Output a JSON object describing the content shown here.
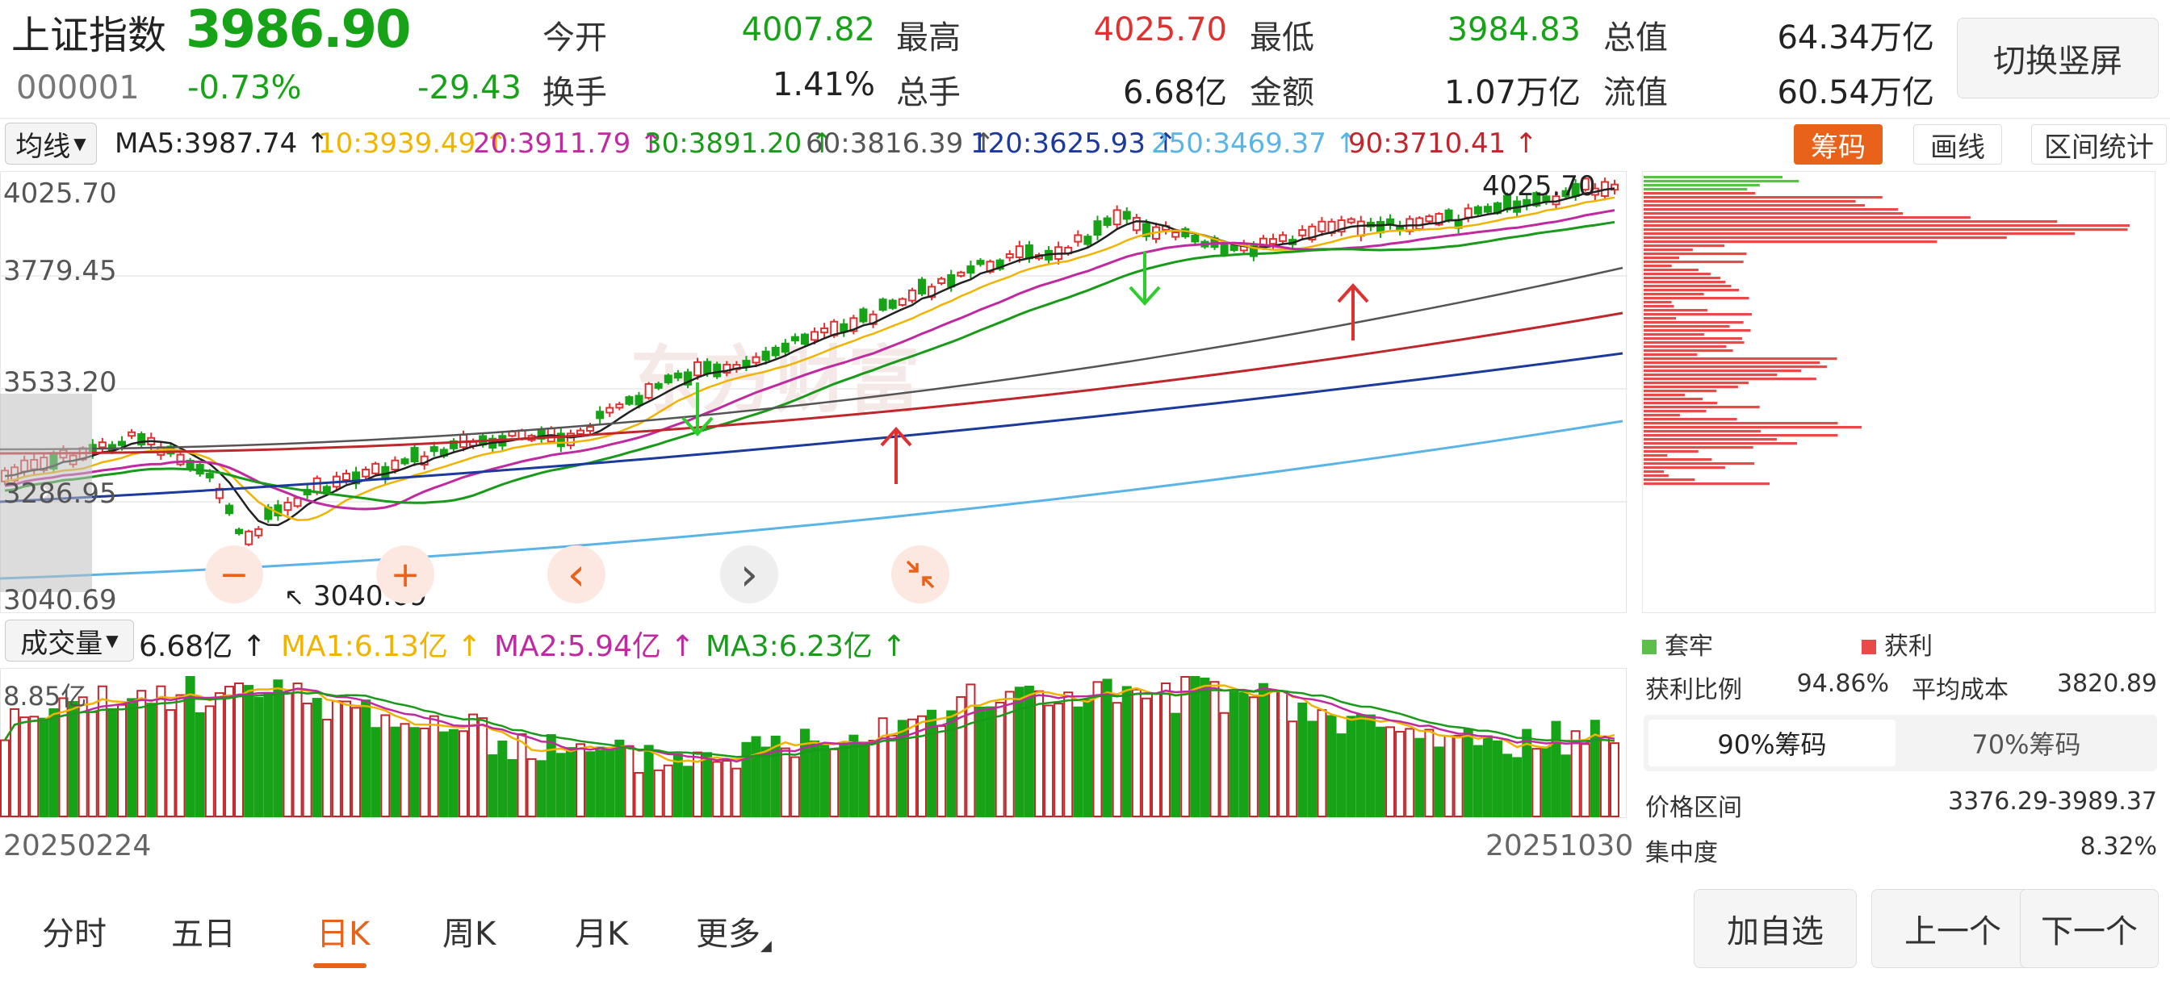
{
  "header": {
    "name": "上证指数",
    "code": "000001",
    "price": "3986.90",
    "change_pct": "-0.73%",
    "change": "-29.43",
    "open_label": "今开",
    "open": "4007.82",
    "high_label": "最高",
    "high": "4025.70",
    "low_label": "最低",
    "low": "3984.83",
    "total_mv_label": "总值",
    "total_mv": "64.34万亿",
    "turnover_label": "换手",
    "turnover": "1.41%",
    "volume_label": "总手",
    "volume": "6.68亿",
    "amount_label": "金额",
    "amount": "1.07万亿",
    "float_mv_label": "流值",
    "float_mv": "60.54万亿",
    "switch_label": "切换竖屏"
  },
  "ma_bar": {
    "selector": "均线",
    "items": [
      {
        "text": "MA5:3987.74",
        "arrow": "↑",
        "color": "#222222"
      },
      {
        "text": "10:3939.49",
        "arrow": "↑",
        "color": "#f0b400"
      },
      {
        "text": "20:3911.79",
        "arrow": "↑",
        "color": "#c02aa0"
      },
      {
        "text": "30:3891.20",
        "arrow": "↑",
        "color": "#1a9a1a"
      },
      {
        "text": "60:3816.39",
        "arrow": "↑",
        "color": "#555555"
      },
      {
        "text": "120:3625.93",
        "arrow": "↑",
        "color": "#1c3a9c"
      },
      {
        "text": "250:3469.37",
        "arrow": "↑",
        "color": "#5ab4e6"
      },
      {
        "text": "90:3710.41",
        "arrow": "↑",
        "color": "#c0272d"
      }
    ],
    "chip_btn": "筹码",
    "draw_btn": "画线",
    "range_btn": "区间统计"
  },
  "price_chart": {
    "y_labels": [
      "4025.70",
      "3779.45",
      "3533.20",
      "3286.95",
      "3040.69"
    ],
    "high_marker": "4025.70",
    "low_marker": "3040.69",
    "watermark": "东方财富",
    "controls": [
      "−",
      "+",
      "‹",
      "›"
    ]
  },
  "volume_bar": {
    "selector": "成交量",
    "value": "6.68亿",
    "ma1": "MA1:6.13亿",
    "ma2": "MA2:5.94亿",
    "ma3": "MA3:6.23亿",
    "max_label": "8.85亿",
    "date_start": "20250224",
    "date_end": "20251030"
  },
  "chip_panel": {
    "legend_trap": "套牢",
    "legend_profit": "获利",
    "profit_ratio_label": "获利比例",
    "profit_ratio": "94.86%",
    "avg_cost_label": "平均成本",
    "avg_cost": "3820.89",
    "tab_90": "90%筹码",
    "tab_70": "70%筹码",
    "price_range_label": "价格区间",
    "price_range": "3376.29-3989.37",
    "concentration_label": "集中度",
    "concentration": "8.32%"
  },
  "bottom_tabs": [
    "分时",
    "五日",
    "日K",
    "周K",
    "月K",
    "更多"
  ],
  "bottom_buttons": {
    "add": "加自选",
    "prev": "上一个",
    "next": "下一个"
  },
  "colors": {
    "up": "#e03131",
    "down": "#17a317",
    "accent": "#e8621a"
  }
}
